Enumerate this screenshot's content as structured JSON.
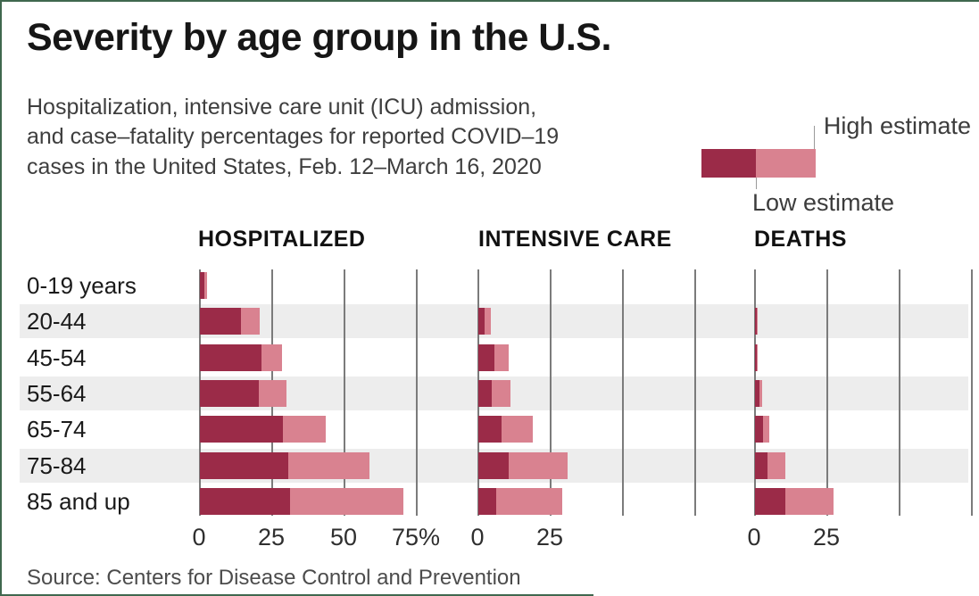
{
  "header": {
    "title": "Severity by age group in the U.S.",
    "subtitle": "Hospitalization, intensive care unit (ICU) admission,\nand case–fatality percentages for reported COVID–19\ncases in the United States, Feb. 12–March 16, 2020"
  },
  "legend": {
    "high_label": "High estimate",
    "low_label": "Low estimate"
  },
  "footer": {
    "source": "Source: Centers for Disease Control and Prevention"
  },
  "colors": {
    "low_estimate": "#9b2b48",
    "high_estimate": "#d98290",
    "row_stripe": "#ededed",
    "gridline": "#7b7b7b",
    "frame_green": "#40684e"
  },
  "chart_data": {
    "type": "bar",
    "orientation": "horizontal",
    "unit": "percent",
    "legend_position": "top-right",
    "grid": true,
    "categories": [
      "0-19 years",
      "20-44",
      "45-54",
      "55-64",
      "65-74",
      "75-84",
      "85 and up"
    ],
    "axis": {
      "ticks": [
        0,
        25,
        50,
        75
      ],
      "max": 75
    },
    "panels": [
      {
        "title": "HOSPITALIZED",
        "tick_labels": [
          "0",
          "25",
          "50",
          "75%"
        ],
        "series": [
          {
            "name": "Low estimate",
            "values": [
              1.6,
              14.3,
              21.2,
              20.5,
              28.6,
              30.5,
              31.3
            ]
          },
          {
            "name": "High estimate",
            "values": [
              2.5,
              20.8,
              28.3,
              30.1,
              43.5,
              58.7,
              70.3
            ]
          }
        ]
      },
      {
        "title": "INTENSIVE CARE",
        "tick_labels": [
          "0",
          "25"
        ],
        "series": [
          {
            "name": "Low estimate",
            "values": [
              0,
              2.0,
              5.4,
              4.7,
              8.1,
              10.5,
              6.3
            ]
          },
          {
            "name": "High estimate",
            "values": [
              0,
              4.2,
              10.4,
              11.2,
              18.8,
              31.0,
              29.0
            ]
          }
        ]
      },
      {
        "title": "DEATHS",
        "tick_labels": [
          "0",
          "25"
        ],
        "series": [
          {
            "name": "Low estimate",
            "values": [
              0,
              0.1,
              0.5,
              1.4,
              2.7,
              4.3,
              10.4
            ]
          },
          {
            "name": "High estimate",
            "values": [
              0,
              0.2,
              0.8,
              2.6,
              4.9,
              10.5,
              27.3
            ]
          }
        ]
      }
    ]
  }
}
